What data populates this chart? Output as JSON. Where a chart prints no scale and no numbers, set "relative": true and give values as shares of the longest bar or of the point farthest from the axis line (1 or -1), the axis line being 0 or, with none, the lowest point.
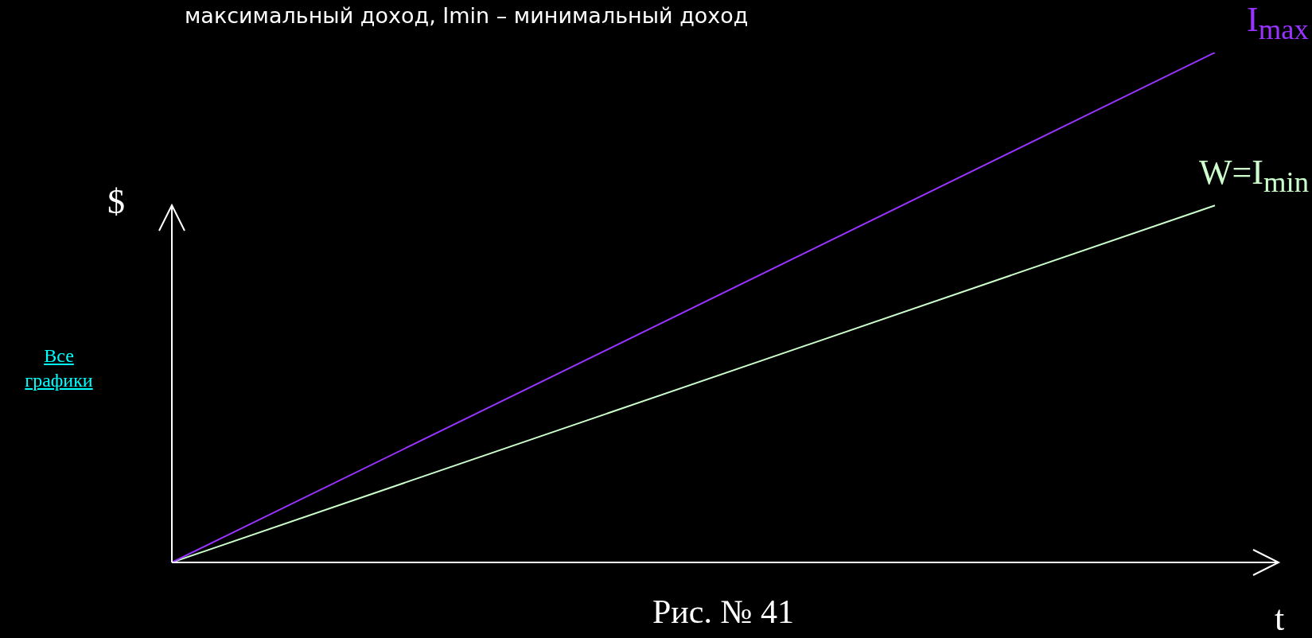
{
  "chart_data": {
    "type": "line",
    "title": "максимальный доход, Imin – минимальный доход",
    "xlabel": "t",
    "ylabel": "$",
    "relative": true,
    "categories": [
      null,
      null
    ],
    "marker": "none",
    "legend": false,
    "series": [
      {
        "name": "I$_{max}$",
        "color": "#9933ff",
        "values": [
          0,
          1
        ]
      },
      {
        "name": "W=I$_{min}$",
        "color": "#ccffcc",
        "values": [
          0,
          0.7
        ]
      }
    ],
    "annotations": [
      "Рис. № 41",
      "Все графики"
    ]
  }
}
